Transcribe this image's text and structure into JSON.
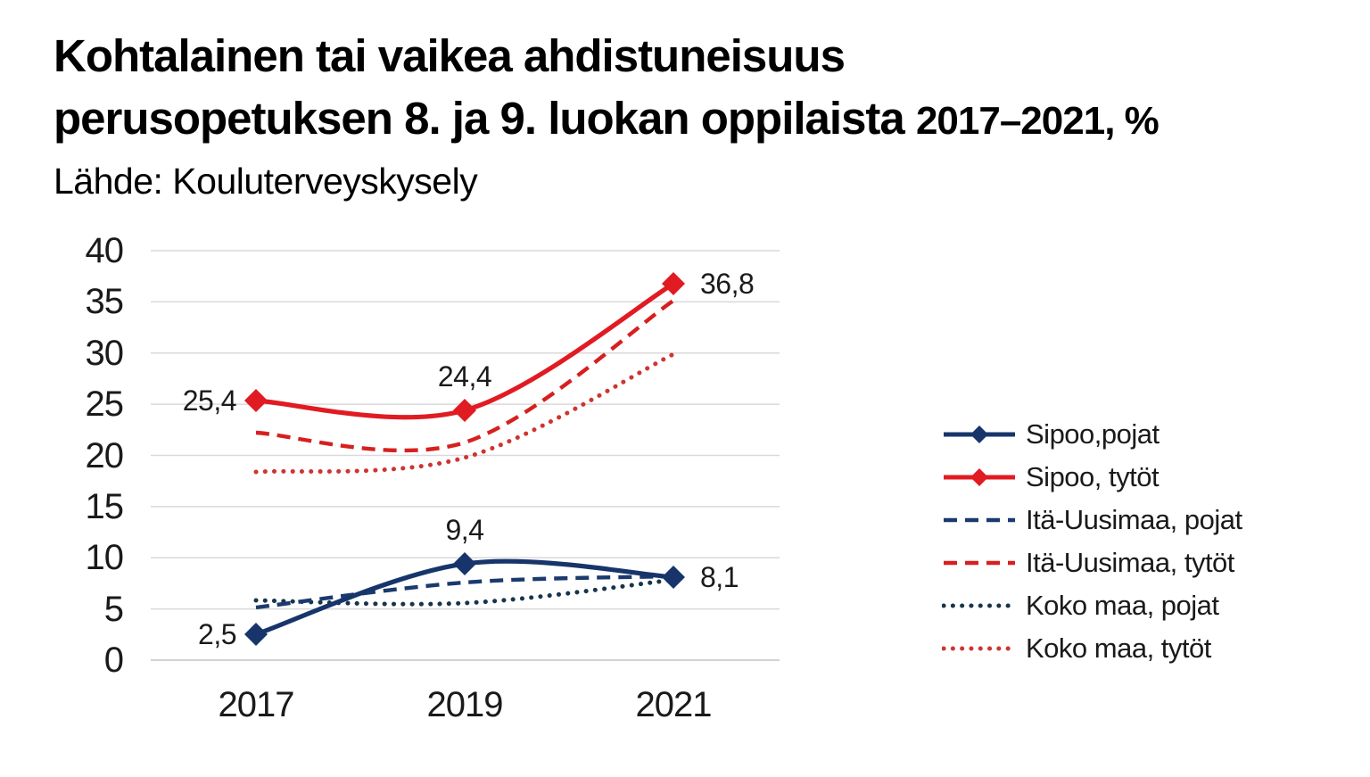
{
  "header": {
    "title_line1": "Kohtalainen tai vaikea ahdistuneisuus",
    "title_line2": "perusopetuksen 8. ja 9. luokan oppilaista",
    "title_period": "2017–2021, %",
    "source": "Lähde: Kouluterveyskysely"
  },
  "chart_data": {
    "type": "line",
    "title": "Kohtalainen tai vaikea ahdistuneisuus perusopetuksen 8. ja 9. luokan oppilaista 2017–2021, %",
    "source": "Lähde: Kouluterveyskysely",
    "x": [
      2017,
      2019,
      2021
    ],
    "x_tick_labels": [
      "2017",
      "2019",
      "2021"
    ],
    "ylim": [
      0,
      40
    ],
    "y_ticks": [
      "0",
      "5",
      "10",
      "15",
      "20",
      "25",
      "30",
      "35",
      "40"
    ],
    "grid": true,
    "grid_color": "#d9d9d9",
    "axis_line_color": "#c4c4c4",
    "legend_position": "right",
    "line_shape": "spline",
    "series": [
      {
        "name": "Sipoo,pojat",
        "values": [
          2.5,
          9.4,
          8.1
        ],
        "color": "#17356b",
        "style": "solid",
        "marker": "diamond",
        "point_labels": [
          "2,5",
          "9,4",
          "8,1"
        ],
        "point_label_pos": [
          "left",
          "above",
          "right"
        ]
      },
      {
        "name": "Sipoo, tytöt",
        "values": [
          25.4,
          24.4,
          36.8
        ],
        "color": "#e01b22",
        "style": "solid",
        "marker": "diamond",
        "point_labels": [
          "25,4",
          "24,4",
          "36,8"
        ],
        "point_label_pos": [
          "left",
          "above",
          "right"
        ]
      },
      {
        "name": "Itä-Uusimaa, pojat",
        "values": [
          5.1,
          7.6,
          8.2
        ],
        "color": "#1b3a6e",
        "style": "dashed",
        "marker": "none",
        "point_labels": [],
        "point_label_pos": []
      },
      {
        "name": "Itä-Uusimaa, tytöt",
        "values": [
          22.2,
          21.3,
          35.1
        ],
        "color": "#d6201f",
        "style": "dashed",
        "marker": "none",
        "point_labels": [],
        "point_label_pos": []
      },
      {
        "name": "Koko maa, pojat",
        "values": [
          5.8,
          5.6,
          7.8
        ],
        "color": "#18344a",
        "style": "dotted",
        "marker": "none",
        "point_labels": [],
        "point_label_pos": []
      },
      {
        "name": "Koko maa, tytöt",
        "values": [
          18.4,
          19.8,
          29.9
        ],
        "color": "#cf3430",
        "style": "dotted",
        "marker": "none",
        "point_labels": [],
        "point_label_pos": []
      }
    ]
  }
}
